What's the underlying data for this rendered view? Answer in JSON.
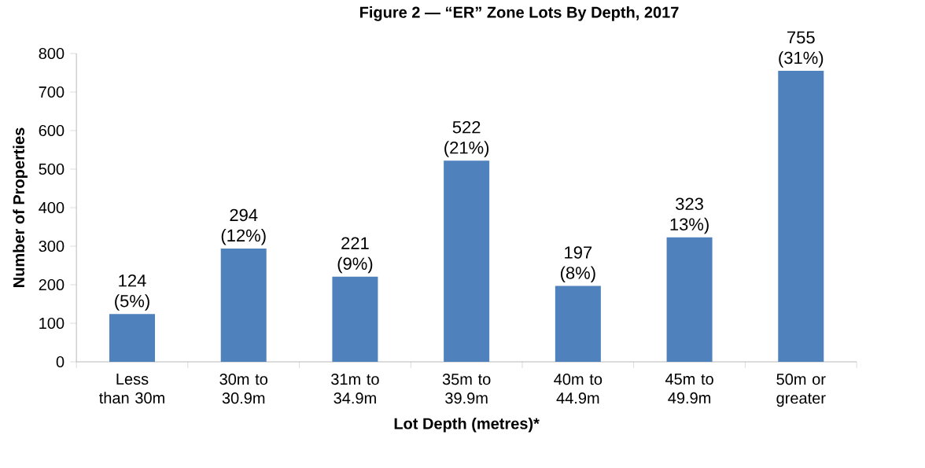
{
  "chart_data": {
    "type": "bar",
    "title": "Figure 2 — “ER” Zone Lots By Depth, 2017",
    "xlabel": "Lot Depth (metres)*",
    "ylabel": "Number of Properties",
    "categories": [
      "Less than 30m",
      "30m to 30.9m",
      "31m to 34.9m",
      "35m to 39.9m",
      "40m to 44.9m",
      "45m to 49.9m",
      "50m or greater"
    ],
    "values": [
      124,
      294,
      221,
      522,
      197,
      323,
      755
    ],
    "value_labels": [
      "124 (5%)",
      "294 (12%)",
      "221 (9%)",
      "522 (21%)",
      "197 (8%)",
      "323 13%)",
      "755 (31%)"
    ],
    "color": "#4f81bd",
    "ylim": [
      0,
      800
    ],
    "yticks": [
      0,
      100,
      200,
      300,
      400,
      500,
      600,
      700,
      800
    ],
    "grid": false
  }
}
